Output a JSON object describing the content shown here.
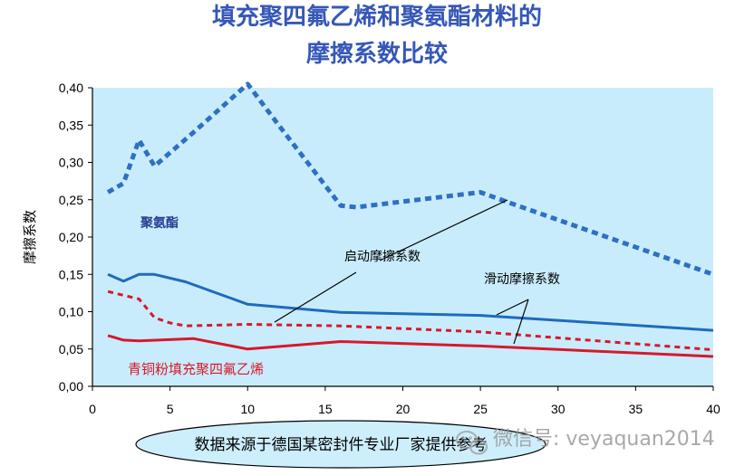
{
  "title": {
    "line1": "填充聚四氟乙烯和聚氨酯材料的",
    "line2": "摩擦系数比较"
  },
  "chart_data": {
    "type": "line",
    "ylabel": "摩擦系数",
    "xlabel": "",
    "xlim": [
      0,
      40
    ],
    "ylim": [
      0.0,
      0.4
    ],
    "x_ticks": [
      "0",
      "5",
      "10",
      "15",
      "20",
      "25",
      "30",
      "35",
      "40"
    ],
    "y_ticks": [
      "0,00",
      "0,05",
      "0,10",
      "0,15",
      "0,20",
      "0,25",
      "0,30",
      "0,35",
      "0,40"
    ],
    "grid": false,
    "series": [
      {
        "name": "聚氨酯 启动摩擦系数",
        "color": "#2f6fc5",
        "style": "dashed",
        "points": [
          [
            1,
            0.26
          ],
          [
            2,
            0.272
          ],
          [
            3,
            0.33
          ],
          [
            4,
            0.295
          ],
          [
            6.5,
            0.34
          ],
          [
            10,
            0.405
          ],
          [
            12,
            0.35
          ],
          [
            16,
            0.242
          ],
          [
            17,
            0.24
          ],
          [
            25,
            0.26
          ],
          [
            27,
            0.245
          ],
          [
            40,
            0.15
          ]
        ]
      },
      {
        "name": "聚氨酯 滑动摩擦系数",
        "color": "#1f6bbd",
        "style": "solid",
        "points": [
          [
            1,
            0.15
          ],
          [
            2,
            0.141
          ],
          [
            3,
            0.15
          ],
          [
            4,
            0.15
          ],
          [
            6,
            0.14
          ],
          [
            10,
            0.11
          ],
          [
            16,
            0.099
          ],
          [
            25,
            0.095
          ],
          [
            40,
            0.075
          ]
        ]
      },
      {
        "name": "青铜粉填充聚四氟乙烯 启动摩擦系数",
        "color": "#d8182a",
        "style": "dashed",
        "points": [
          [
            1,
            0.127
          ],
          [
            3,
            0.117
          ],
          [
            4,
            0.092
          ],
          [
            5,
            0.085
          ],
          [
            6,
            0.081
          ],
          [
            10,
            0.083
          ],
          [
            16,
            0.081
          ],
          [
            25,
            0.073
          ],
          [
            40,
            0.049
          ]
        ]
      },
      {
        "name": "青铜粉填充聚四氟乙烯 滑动摩擦系数",
        "color": "#d8182a",
        "style": "solid",
        "points": [
          [
            1,
            0.068
          ],
          [
            2,
            0.062
          ],
          [
            3,
            0.061
          ],
          [
            6.5,
            0.064
          ],
          [
            10,
            0.05
          ],
          [
            16,
            0.06
          ],
          [
            25,
            0.054
          ],
          [
            40,
            0.04
          ]
        ]
      }
    ],
    "annotations": {
      "polyurethane": "聚氨酯",
      "start_friction": "启动摩擦系数",
      "sliding_friction": "滑动摩擦系数",
      "bronze_ptfe": "青铜粉填充聚四氟乙烯"
    }
  },
  "source_note": "数据来源于德国某密封件专业厂家提供参考",
  "watermark": "微信号: veyaquan2014",
  "colors": {
    "plot_bg": "#c8ecfb",
    "title": "#3557b7",
    "ellipse_fill": "#cdeefb"
  }
}
